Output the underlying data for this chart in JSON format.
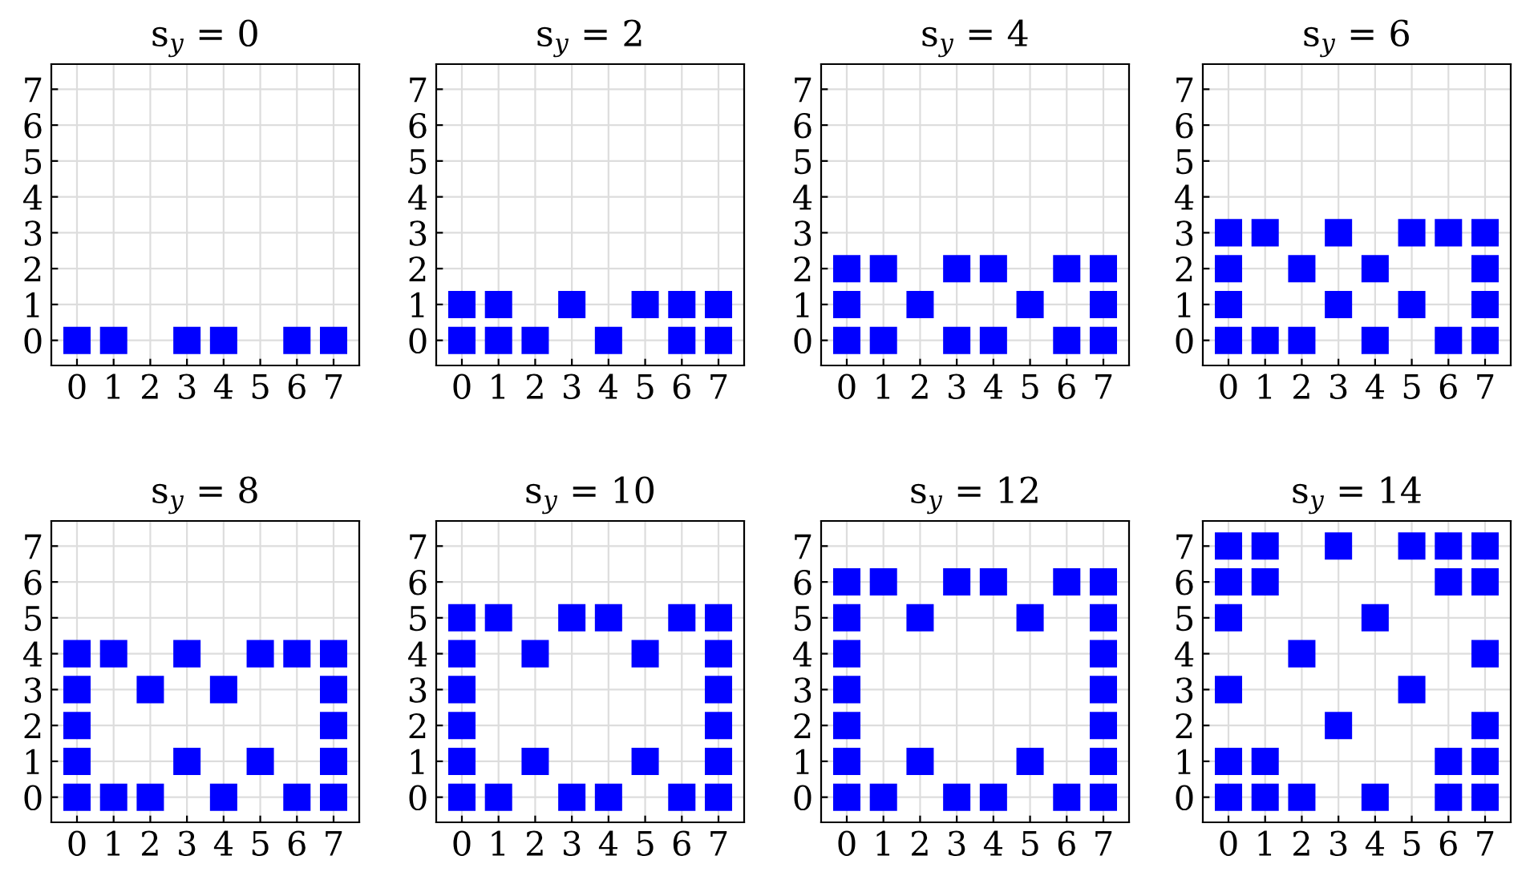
{
  "chart_data": [
    {
      "type": "scatter",
      "title": "s$_{y}$ = 0",
      "xlim": [
        -0.7,
        7.7
      ],
      "ylim": [
        -0.7,
        7.7
      ],
      "xticks": [
        0,
        1,
        2,
        3,
        4,
        5,
        6,
        7
      ],
      "yticks": [
        0,
        1,
        2,
        3,
        4,
        5,
        6,
        7
      ],
      "grid": true,
      "marker": "square",
      "series": [
        {
          "color": "#0000ff",
          "x": [
            0,
            1,
            3,
            4,
            6,
            7
          ],
          "values": [
            0,
            0,
            0,
            0,
            0,
            0
          ]
        }
      ]
    },
    {
      "type": "scatter",
      "title": "s$_{y}$ = 2",
      "xlim": [
        -0.7,
        7.7
      ],
      "ylim": [
        -0.7,
        7.7
      ],
      "xticks": [
        0,
        1,
        2,
        3,
        4,
        5,
        6,
        7
      ],
      "yticks": [
        0,
        1,
        2,
        3,
        4,
        5,
        6,
        7
      ],
      "grid": true,
      "marker": "square",
      "series": [
        {
          "color": "#0000ff",
          "x": [
            0,
            1,
            2,
            4,
            6,
            7,
            0,
            1,
            3,
            5,
            6,
            7
          ],
          "values": [
            0,
            0,
            0,
            0,
            0,
            0,
            1,
            1,
            1,
            1,
            1,
            1
          ]
        }
      ]
    },
    {
      "type": "scatter",
      "title": "s$_{y}$ = 4",
      "xlim": [
        -0.7,
        7.7
      ],
      "ylim": [
        -0.7,
        7.7
      ],
      "xticks": [
        0,
        1,
        2,
        3,
        4,
        5,
        6,
        7
      ],
      "yticks": [
        0,
        1,
        2,
        3,
        4,
        5,
        6,
        7
      ],
      "grid": true,
      "marker": "square",
      "series": [
        {
          "color": "#0000ff",
          "x": [
            0,
            1,
            3,
            4,
            6,
            7,
            0,
            2,
            5,
            7,
            0,
            1,
            3,
            4,
            6,
            7
          ],
          "values": [
            0,
            0,
            0,
            0,
            0,
            0,
            1,
            1,
            1,
            1,
            2,
            2,
            2,
            2,
            2,
            2
          ]
        }
      ]
    },
    {
      "type": "scatter",
      "title": "s$_{y}$ = 6",
      "xlim": [
        -0.7,
        7.7
      ],
      "ylim": [
        -0.7,
        7.7
      ],
      "xticks": [
        0,
        1,
        2,
        3,
        4,
        5,
        6,
        7
      ],
      "yticks": [
        0,
        1,
        2,
        3,
        4,
        5,
        6,
        7
      ],
      "grid": true,
      "marker": "square",
      "series": [
        {
          "color": "#0000ff",
          "x": [
            0,
            1,
            2,
            4,
            6,
            7,
            0,
            3,
            5,
            7,
            0,
            2,
            4,
            7,
            0,
            1,
            3,
            5,
            6,
            7
          ],
          "values": [
            0,
            0,
            0,
            0,
            0,
            0,
            1,
            1,
            1,
            1,
            2,
            2,
            2,
            2,
            3,
            3,
            3,
            3,
            3,
            3
          ]
        }
      ]
    },
    {
      "type": "scatter",
      "title": "s$_{y}$ = 8",
      "xlim": [
        -0.7,
        7.7
      ],
      "ylim": [
        -0.7,
        7.7
      ],
      "xticks": [
        0,
        1,
        2,
        3,
        4,
        5,
        6,
        7
      ],
      "yticks": [
        0,
        1,
        2,
        3,
        4,
        5,
        6,
        7
      ],
      "grid": true,
      "marker": "square",
      "series": [
        {
          "color": "#0000ff",
          "x": [
            0,
            1,
            2,
            4,
            6,
            7,
            0,
            3,
            5,
            7,
            0,
            7,
            0,
            2,
            4,
            7,
            0,
            1,
            3,
            5,
            6,
            7
          ],
          "values": [
            0,
            0,
            0,
            0,
            0,
            0,
            1,
            1,
            1,
            1,
            2,
            2,
            3,
            3,
            3,
            3,
            4,
            4,
            4,
            4,
            4,
            4
          ]
        }
      ]
    },
    {
      "type": "scatter",
      "title": "s$_{y}$ = 10",
      "xlim": [
        -0.7,
        7.7
      ],
      "ylim": [
        -0.7,
        7.7
      ],
      "xticks": [
        0,
        1,
        2,
        3,
        4,
        5,
        6,
        7
      ],
      "yticks": [
        0,
        1,
        2,
        3,
        4,
        5,
        6,
        7
      ],
      "grid": true,
      "marker": "square",
      "series": [
        {
          "color": "#0000ff",
          "x": [
            0,
            1,
            3,
            4,
            6,
            7,
            0,
            2,
            5,
            7,
            0,
            7,
            0,
            7,
            0,
            2,
            5,
            7,
            0,
            1,
            3,
            4,
            6,
            7
          ],
          "values": [
            0,
            0,
            0,
            0,
            0,
            0,
            1,
            1,
            1,
            1,
            2,
            2,
            3,
            3,
            4,
            4,
            4,
            4,
            5,
            5,
            5,
            5,
            5,
            5
          ]
        }
      ]
    },
    {
      "type": "scatter",
      "title": "s$_{y}$ = 12",
      "xlim": [
        -0.7,
        7.7
      ],
      "ylim": [
        -0.7,
        7.7
      ],
      "xticks": [
        0,
        1,
        2,
        3,
        4,
        5,
        6,
        7
      ],
      "yticks": [
        0,
        1,
        2,
        3,
        4,
        5,
        6,
        7
      ],
      "grid": true,
      "marker": "square",
      "series": [
        {
          "color": "#0000ff",
          "x": [
            0,
            1,
            3,
            4,
            6,
            7,
            0,
            2,
            5,
            7,
            0,
            7,
            0,
            7,
            0,
            7,
            0,
            2,
            5,
            7,
            0,
            1,
            3,
            4,
            6,
            7
          ],
          "values": [
            0,
            0,
            0,
            0,
            0,
            0,
            1,
            1,
            1,
            1,
            2,
            2,
            3,
            3,
            4,
            4,
            5,
            5,
            5,
            5,
            6,
            6,
            6,
            6,
            6,
            6
          ]
        }
      ]
    },
    {
      "type": "scatter",
      "title": "s$_{y}$ = 14",
      "xlim": [
        -0.7,
        7.7
      ],
      "ylim": [
        -0.7,
        7.7
      ],
      "xticks": [
        0,
        1,
        2,
        3,
        4,
        5,
        6,
        7
      ],
      "yticks": [
        0,
        1,
        2,
        3,
        4,
        5,
        6,
        7
      ],
      "grid": true,
      "marker": "square",
      "series": [
        {
          "color": "#0000ff",
          "x": [
            0,
            1,
            2,
            4,
            6,
            7,
            0,
            1,
            6,
            7,
            3,
            7,
            0,
            5,
            2,
            7,
            0,
            4,
            0,
            1,
            6,
            7,
            0,
            1,
            3,
            5,
            6,
            7
          ],
          "values": [
            0,
            0,
            0,
            0,
            0,
            0,
            1,
            1,
            1,
            1,
            2,
            2,
            3,
            3,
            4,
            4,
            5,
            5,
            6,
            6,
            6,
            6,
            7,
            7,
            7,
            7,
            7,
            7
          ]
        }
      ]
    }
  ]
}
